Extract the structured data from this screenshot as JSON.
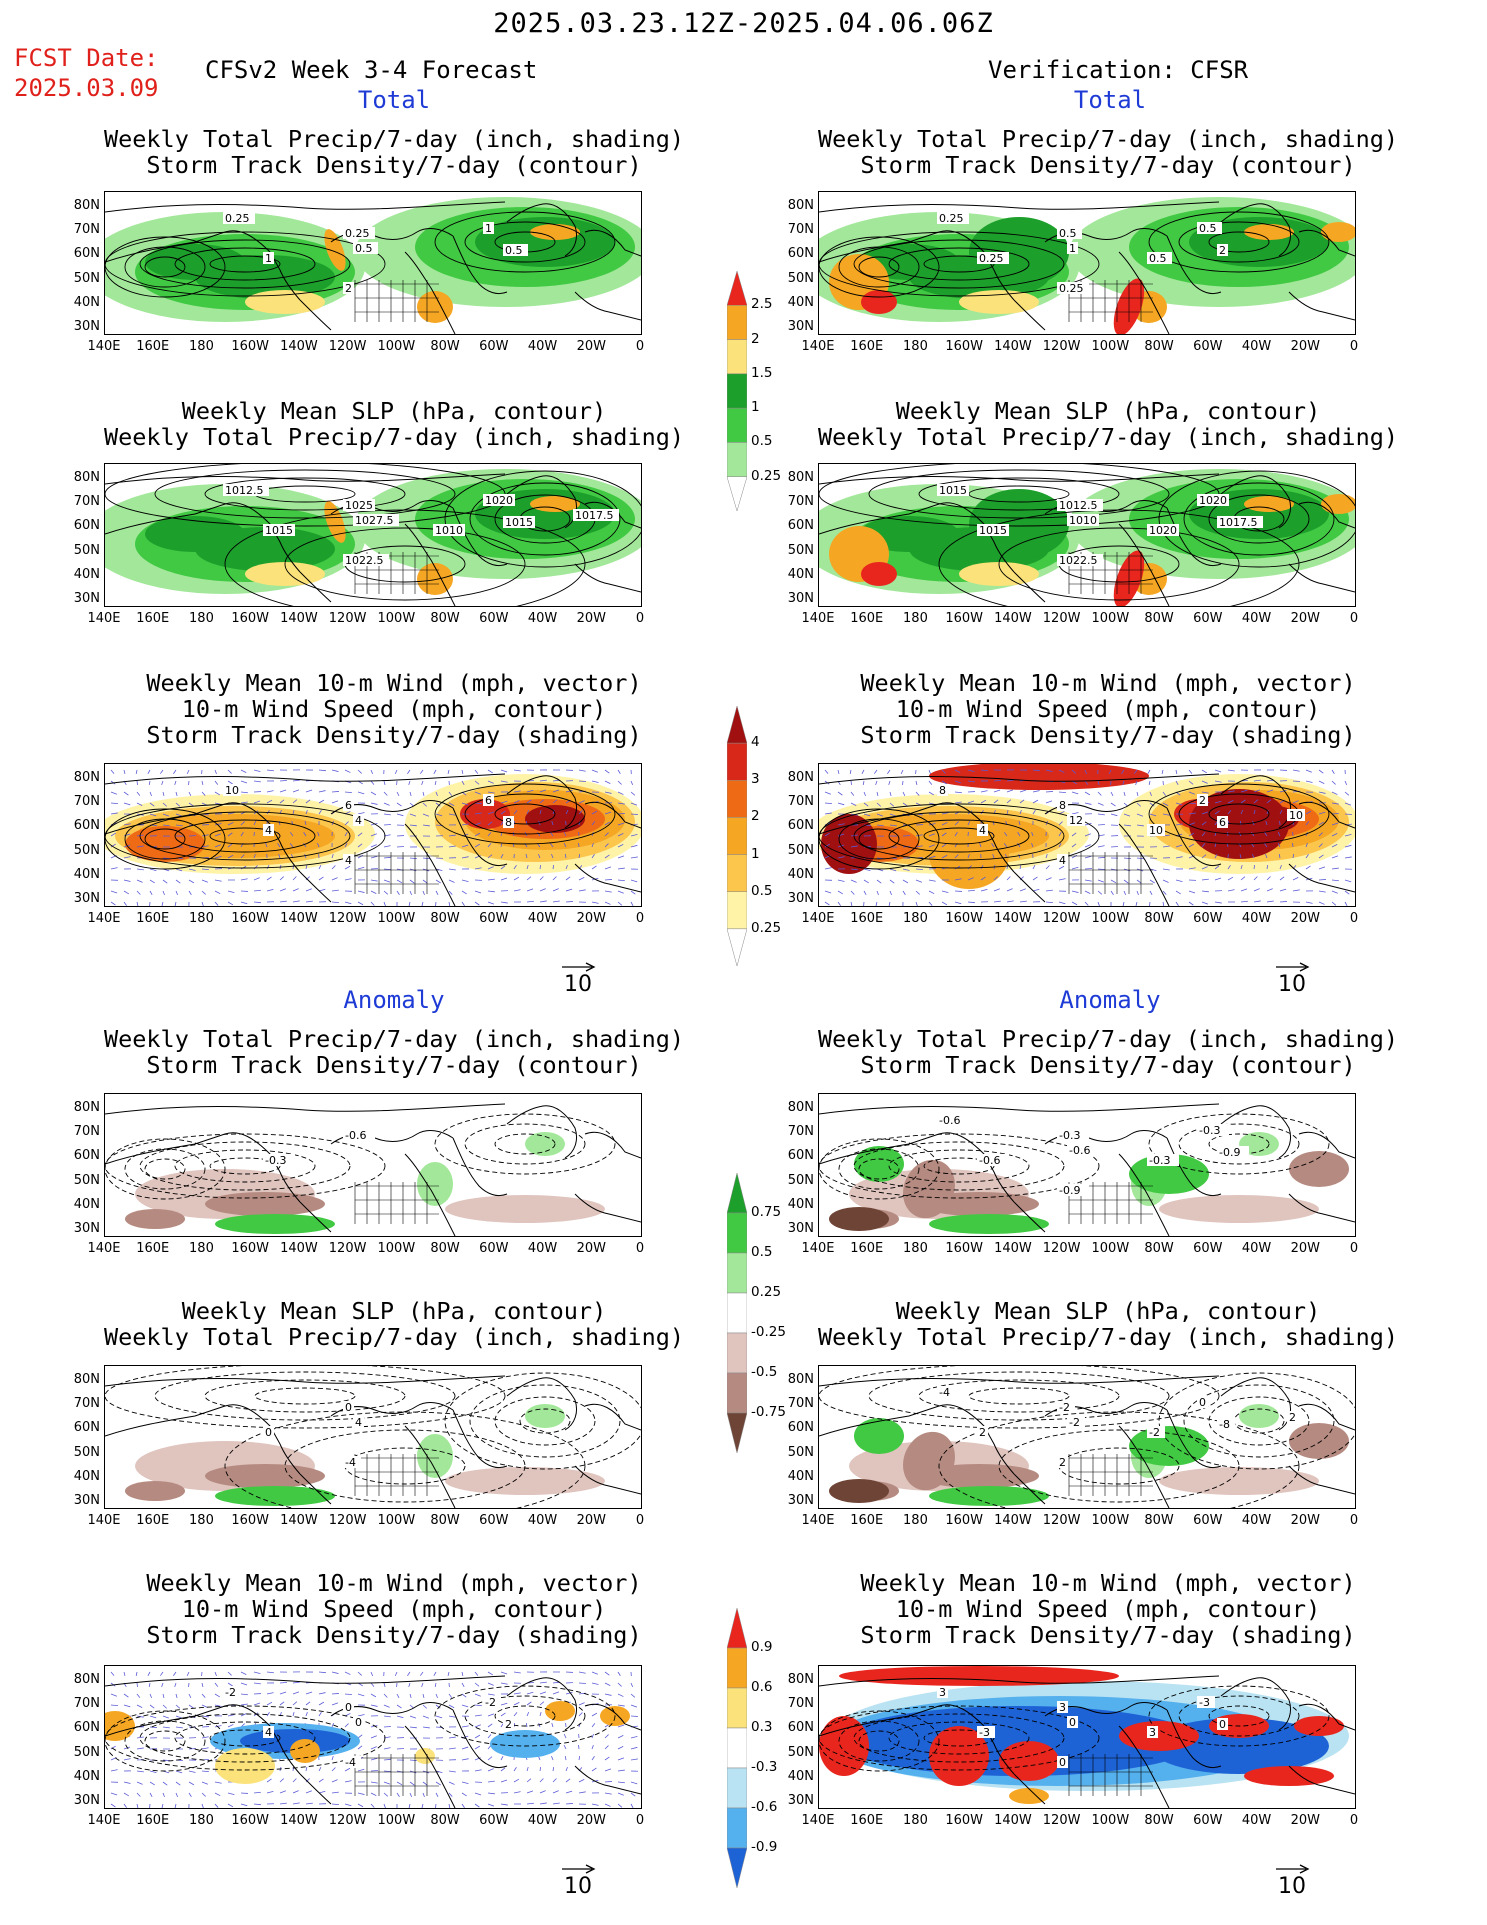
{
  "header": {
    "period": "2025.03.23.12Z-2025.04.06.06Z",
    "fcst_label": "FCST Date:",
    "fcst_date": "2025.03.09",
    "model": "CFSv2 Week 3-4 Forecast",
    "verification": "Verification: CFSR"
  },
  "sections": {
    "total": "Total",
    "anomaly": "Anomaly"
  },
  "titles": {
    "precip_storm": [
      "Weekly Total Precip/7-day (inch, shading)",
      "Storm Track Density/7-day (contour)"
    ],
    "slp_precip": [
      "Weekly Mean SLP (hPa, contour)",
      "Weekly Total Precip/7-day (inch, shading)"
    ],
    "wind_storm": [
      "Weekly Mean 10-m Wind (mph, vector)",
      "10-m Wind Speed (mph, contour)",
      "Storm Track Density/7-day (shading)"
    ]
  },
  "axes": {
    "lat_ticks": [
      "80N",
      "70N",
      "60N",
      "50N",
      "40N",
      "30N"
    ],
    "lon_ticks": [
      "140E",
      "160E",
      "180",
      "160W",
      "140W",
      "120W",
      "100W",
      "80W",
      "60W",
      "40W",
      "20W",
      "0"
    ]
  },
  "vector_ref": "10",
  "colorbars": {
    "precip_total": {
      "labels": [
        "2.5",
        "2",
        "1.5",
        "1",
        "0.5",
        "0.25"
      ],
      "colors": [
        "#e8261e",
        "#f5a623",
        "#fbe27a",
        "#1d9f2b",
        "#41c943",
        "#a3e89a",
        "#ffffff"
      ]
    },
    "storm_total": {
      "labels": [
        "4",
        "3",
        "2",
        "1",
        "0.5",
        "0.25"
      ],
      "colors": [
        "#a01010",
        "#d8281a",
        "#ef6a14",
        "#f5a623",
        "#fcc64d",
        "#fff3a8",
        "#ffffff"
      ]
    },
    "precip_anom": {
      "labels": [
        "0.75",
        "0.5",
        "0.25",
        "-0.25",
        "-0.5",
        "-0.75"
      ],
      "colors": [
        "#1d9f2b",
        "#41c943",
        "#a3e89a",
        "#ffffff",
        "#e0c4be",
        "#b58a80",
        "#6e4436"
      ]
    },
    "storm_anom": {
      "labels": [
        "0.9",
        "0.6",
        "0.3",
        "-0.3",
        "-0.6",
        "-0.9"
      ],
      "colors": [
        "#e8261e",
        "#f5a623",
        "#fbe27a",
        "#ffffff",
        "#b9e3f3",
        "#55b0ee",
        "#1e63d6"
      ]
    }
  },
  "contour_labels": {
    "fc_prec": [
      "1",
      "0.25",
      "0.5",
      "2",
      "1",
      "0.5",
      "0.25"
    ],
    "vf_prec": [
      "0.25",
      "0.5",
      "1",
      "0.25",
      "0.5",
      "2",
      "0.25",
      "0.5"
    ],
    "fc_slp": [
      "1015",
      "1025",
      "1027.5",
      "1022.5",
      "1020",
      "1015",
      "1012.5",
      "1010",
      "1017.5"
    ],
    "vf_slp": [
      "1015",
      "1012.5",
      "1010",
      "1022.5",
      "1020",
      "1017.5",
      "1015",
      "1020"
    ],
    "fc_wind": [
      "4",
      "6",
      "4",
      "4",
      "6",
      "8",
      "10"
    ],
    "vf_wind": [
      "4",
      "8",
      "12",
      "4",
      "2",
      "6",
      "8",
      "10",
      "10"
    ],
    "fc_aprec": [
      "-0.3",
      "-0.6"
    ],
    "vf_aprec": [
      "-0.6",
      "-0.3",
      "-0.6",
      "-0.9",
      "-0.3",
      "-0.9",
      "-0.6",
      "-0.3"
    ],
    "fc_aslp": [
      "0",
      "0",
      "4",
      "-4"
    ],
    "vf_aslp": [
      "2",
      "-2",
      "-2",
      "2",
      "0",
      "-8",
      "-4",
      "-2",
      "2"
    ],
    "fc_awind": [
      "4",
      "0",
      "0",
      "-4",
      "-2",
      "2",
      "-2"
    ],
    "vf_awind": [
      "-3",
      "3",
      "0",
      "0",
      "-3",
      "0",
      "3",
      "3"
    ]
  }
}
